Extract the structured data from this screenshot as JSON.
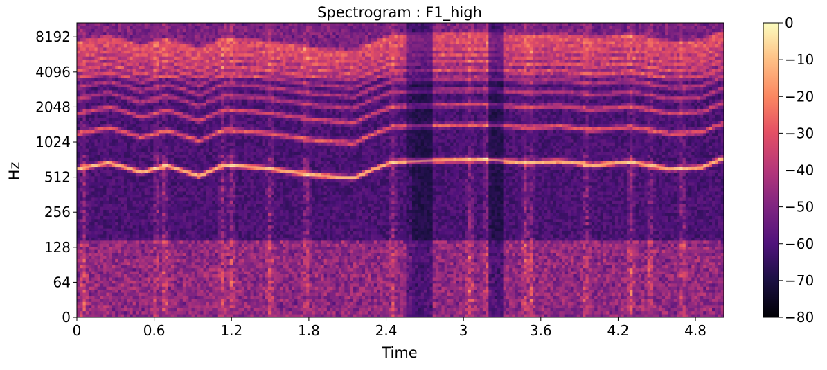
{
  "chart_data": {
    "type": "heatmap",
    "title": "Spectrogram : F1_high",
    "xlabel": "Time",
    "ylabel": "Hz",
    "x_ticks": [
      "0",
      "0.6",
      "1.2",
      "1.8",
      "2.4",
      "3",
      "3.6",
      "4.2",
      "4.8"
    ],
    "x_tick_values": [
      0,
      0.6,
      1.2,
      1.8,
      2.4,
      3.0,
      3.6,
      4.2,
      4.8
    ],
    "xlim": [
      0,
      5.02
    ],
    "y_ticks": [
      "0",
      "64",
      "128",
      "256",
      "512",
      "1024",
      "2048",
      "4096",
      "8192"
    ],
    "y_scale": "log2 (labeled from 0)",
    "ylim_hz": [
      0,
      11025
    ],
    "colorbar": {
      "ticks": [
        "0",
        "−10",
        "−20",
        "−30",
        "−40",
        "−50",
        "−60",
        "−70",
        "−80"
      ],
      "range_db": [
        -80,
        0
      ],
      "colormap": "magma"
    },
    "harmonic_tracks_hz": [
      {
        "name_hidden": true,
        "points": [
          [
            0.0,
            600
          ],
          [
            0.25,
            680
          ],
          [
            0.5,
            560
          ],
          [
            0.7,
            640
          ],
          [
            0.95,
            520
          ],
          [
            1.15,
            650
          ],
          [
            1.4,
            620
          ],
          [
            1.6,
            580
          ],
          [
            1.85,
            530
          ],
          [
            2.15,
            500
          ],
          [
            2.45,
            690
          ],
          [
            2.8,
            710
          ],
          [
            3.2,
            720
          ],
          [
            3.5,
            680
          ],
          [
            3.75,
            700
          ],
          [
            4.0,
            650
          ],
          [
            4.3,
            690
          ],
          [
            4.6,
            600
          ],
          [
            4.85,
            620
          ],
          [
            5.0,
            730
          ]
        ]
      }
    ]
  }
}
